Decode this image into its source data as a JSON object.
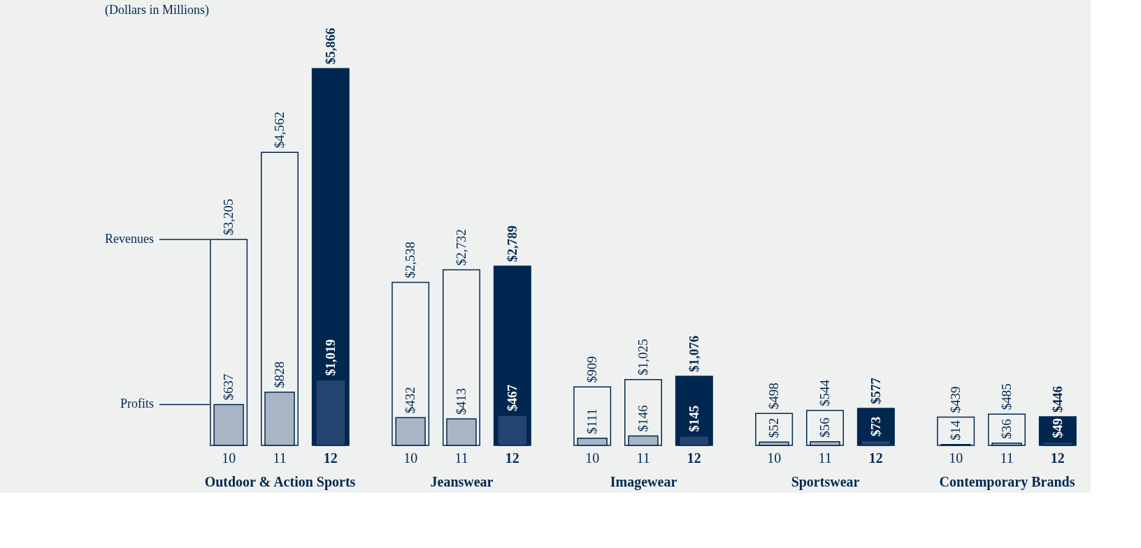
{
  "chart_data": [
    {
      "type": "bar",
      "title": "(Dollars in Millions)",
      "xlabel": "Outdoor & Action Sports",
      "categories": [
        "10",
        "11",
        "12"
      ],
      "legend": "left",
      "data_labels": true,
      "series": [
        {
          "name": "Revenues",
          "color": "#002750",
          "colors": [
            "#eff1f0",
            "#eff1f0",
            "#002750"
          ],
          "values": [
            3205,
            4562,
            5866
          ],
          "value_labels": [
            "$3,205",
            "$4,562",
            "$5,866"
          ]
        },
        {
          "name": "Profits",
          "color": "#002750",
          "colors": [
            "#a9b4c4",
            "#a9b4c4",
            "#23446f"
          ],
          "values": [
            637,
            828,
            1019
          ],
          "value_labels": [
            "$637",
            "$828",
            "$1,019"
          ]
        }
      ]
    },
    {
      "type": "bar",
      "xlabel": "Jeanswear",
      "categories": [
        "10",
        "11",
        "12"
      ],
      "data_labels": true,
      "series": [
        {
          "color": "#002750",
          "colors": [
            "#eff1f0",
            "#eff1f0",
            "#002750"
          ],
          "values": [
            2538,
            2732,
            2789
          ],
          "value_labels": [
            "$2,538",
            "$2,732",
            "$2,789"
          ]
        },
        {
          "color": "#002750",
          "colors": [
            "#a9b4c4",
            "#a9b4c4",
            "#23446f"
          ],
          "values": [
            432,
            413,
            467
          ],
          "value_labels": [
            "$432",
            "$413",
            "$467"
          ]
        }
      ]
    },
    {
      "type": "bar",
      "xlabel": "Imagewear",
      "categories": [
        "10",
        "11",
        "12"
      ],
      "data_labels": true,
      "series": [
        {
          "color": "#002750",
          "colors": [
            "#eff1f0",
            "#eff1f0",
            "#002750"
          ],
          "values": [
            909,
            1025,
            1076
          ],
          "value_labels": [
            "$909",
            "$1,025",
            "$1,076"
          ]
        },
        {
          "color": "#002750",
          "colors": [
            "#a9b4c4",
            "#a9b4c4",
            "#23446f"
          ],
          "values": [
            111,
            146,
            145
          ],
          "value_labels": [
            "$111",
            "$146",
            "$145"
          ]
        }
      ]
    },
    {
      "type": "bar",
      "xlabel": "Sportswear",
      "categories": [
        "10",
        "11",
        "12"
      ],
      "data_labels": true,
      "series": [
        {
          "color": "#002750",
          "colors": [
            "#eff1f0",
            "#eff1f0",
            "#002750"
          ],
          "values": [
            498,
            544,
            577
          ],
          "value_labels": [
            "$498",
            "$544",
            "$577"
          ]
        },
        {
          "color": "#002750",
          "colors": [
            "#a9b4c4",
            "#a9b4c4",
            "#23446f"
          ],
          "values": [
            52,
            56,
            73
          ],
          "value_labels": [
            "$52",
            "$56",
            "$73"
          ]
        }
      ]
    },
    {
      "type": "bar",
      "xlabel": "Contemporary Brands",
      "categories": [
        "10",
        "11",
        "12"
      ],
      "data_labels": true,
      "series": [
        {
          "color": "#002750",
          "colors": [
            "#eff1f0",
            "#eff1f0",
            "#002750"
          ],
          "values": [
            439,
            485,
            446
          ],
          "value_labels": [
            "$439",
            "$485",
            "$446"
          ]
        },
        {
          "color": "#002750",
          "colors": [
            "#a9b4c4",
            "#a9b4c4",
            "#23446f"
          ],
          "values": [
            14,
            36,
            49
          ],
          "value_labels": [
            "$14",
            "$36",
            "$49"
          ]
        }
      ]
    }
  ]
}
